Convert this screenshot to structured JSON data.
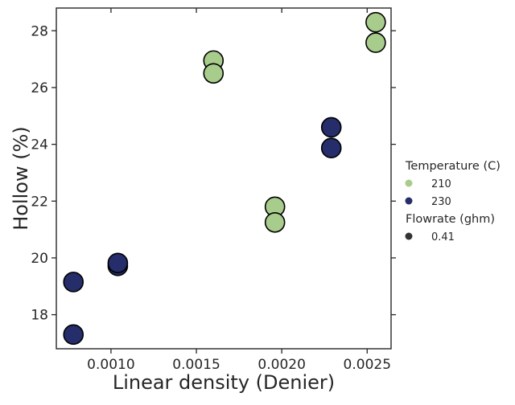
{
  "chart_data": {
    "type": "scatter",
    "xlabel": "Linear density (Denier)",
    "ylabel": "Hollow (%)",
    "xlim": [
      0.00068,
      0.00264
    ],
    "ylim": [
      16.8,
      28.8
    ],
    "xticks": [
      "0.0010",
      "0.0015",
      "0.0020",
      "0.0025"
    ],
    "xtick_values": [
      0.001,
      0.0015,
      0.002,
      0.0025
    ],
    "yticks": [
      "18",
      "20",
      "22",
      "24",
      "26",
      "28"
    ],
    "ytick_values": [
      18,
      20,
      22,
      24,
      26,
      28
    ],
    "grid": false,
    "legend_placement": "right-outside",
    "hue_legend_title": "Temperature (C)",
    "size_legend_title": "Flowrate (ghm)",
    "series": [
      {
        "name": "210",
        "color": "#a8cc8c",
        "points": [
          {
            "x": 0.0016,
            "y": 26.95
          },
          {
            "x": 0.0016,
            "y": 26.5
          },
          {
            "x": 0.00196,
            "y": 21.8
          },
          {
            "x": 0.00196,
            "y": 21.25
          },
          {
            "x": 0.00255,
            "y": 28.3
          },
          {
            "x": 0.00255,
            "y": 27.58
          }
        ]
      },
      {
        "name": "230",
        "color": "#252d6b",
        "points": [
          {
            "x": 0.00078,
            "y": 19.15
          },
          {
            "x": 0.00078,
            "y": 17.3
          },
          {
            "x": 0.00104,
            "y": 19.72
          },
          {
            "x": 0.00104,
            "y": 19.82
          },
          {
            "x": 0.00229,
            "y": 24.6
          },
          {
            "x": 0.00229,
            "y": 23.87
          }
        ]
      }
    ],
    "size_legend": [
      {
        "label": "0.41",
        "color": "#333333"
      }
    ]
  }
}
